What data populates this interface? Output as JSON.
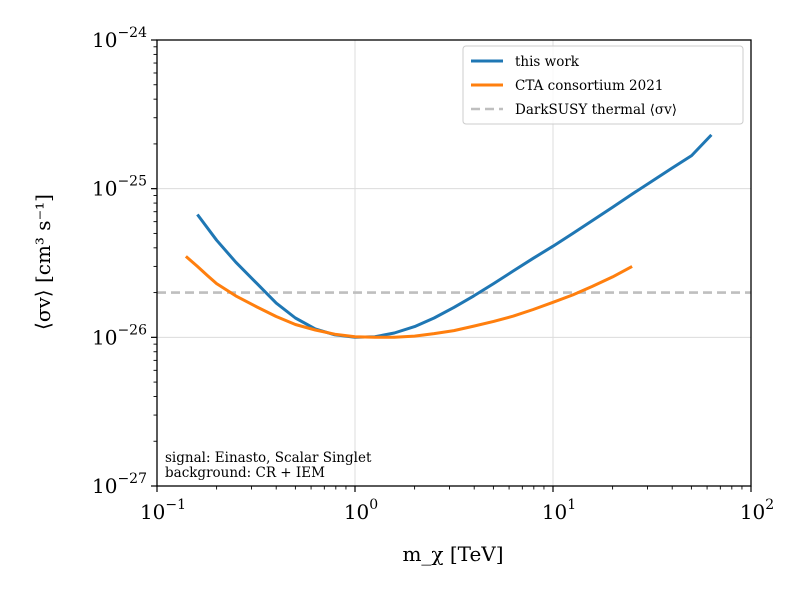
{
  "chart_data": {
    "type": "line",
    "title": "",
    "xlabel": "m_χ [TeV]",
    "ylabel": "⟨σv⟩ [cm³ s⁻¹]",
    "x_scale": "log",
    "y_scale": "log",
    "xlim": [
      0.1,
      100
    ],
    "ylim": [
      1e-27,
      1e-24
    ],
    "grid": true,
    "legend_position": "top-right",
    "x_ticks": [
      {
        "value": 0.1,
        "base": "10",
        "exp": "−1"
      },
      {
        "value": 1,
        "base": "10",
        "exp": "0"
      },
      {
        "value": 10,
        "base": "10",
        "exp": "1"
      },
      {
        "value": 100,
        "base": "10",
        "exp": "2"
      }
    ],
    "y_ticks": [
      {
        "value": 1e-27,
        "base": "10",
        "exp": "−27"
      },
      {
        "value": 1e-26,
        "base": "10",
        "exp": "−26"
      },
      {
        "value": 1e-25,
        "base": "10",
        "exp": "−25"
      },
      {
        "value": 1e-24,
        "base": "10",
        "exp": "−24"
      }
    ],
    "series": [
      {
        "name": "this work",
        "color": "#1f77b4",
        "style": "solid",
        "x": [
          0.16,
          0.2,
          0.25,
          0.32,
          0.4,
          0.5,
          0.63,
          0.79,
          1.0,
          1.26,
          1.58,
          2.0,
          2.51,
          3.16,
          3.98,
          5.01,
          6.31,
          7.94,
          10.0,
          12.6,
          15.8,
          20.0,
          25.1,
          31.6,
          39.8,
          50.1,
          63.1
        ],
        "y": [
          6.7e-26,
          4.5e-26,
          3.2e-26,
          2.3e-26,
          1.7e-26,
          1.35e-26,
          1.14e-26,
          1.04e-26,
          1e-26,
          1.01e-26,
          1.07e-26,
          1.18e-26,
          1.35e-26,
          1.59e-26,
          1.9e-26,
          2.3e-26,
          2.8e-26,
          3.4e-26,
          4.1e-26,
          5e-26,
          6.1e-26,
          7.5e-26,
          9.2e-26,
          1.12e-25,
          1.37e-25,
          1.67e-25,
          2.3e-25
        ]
      },
      {
        "name": "CTA consortium 2021",
        "color": "#ff7f0e",
        "style": "solid",
        "x": [
          0.14,
          0.16,
          0.18,
          0.2,
          0.25,
          0.32,
          0.4,
          0.5,
          0.63,
          0.79,
          1.0,
          1.26,
          1.58,
          2.0,
          2.51,
          3.16,
          3.98,
          5.01,
          6.31,
          7.94,
          10.0,
          12.6,
          15.8,
          20.0,
          25.1
        ],
        "y": [
          3.5e-26,
          3e-26,
          2.6e-26,
          2.3e-26,
          1.9e-26,
          1.6e-26,
          1.38e-26,
          1.22e-26,
          1.12e-26,
          1.05e-26,
          1.01e-26,
          1e-26,
          1e-26,
          1.02e-26,
          1.06e-26,
          1.11e-26,
          1.19e-26,
          1.28e-26,
          1.39e-26,
          1.54e-26,
          1.72e-26,
          1.93e-26,
          2.2e-26,
          2.55e-26,
          3e-26
        ]
      },
      {
        "name": "DarkSUSY thermal ⟨σv⟩",
        "color": "#bfbfbf",
        "style": "dashed",
        "x": [
          0.1,
          100
        ],
        "y": [
          2e-26,
          2e-26
        ]
      }
    ],
    "annotations": [
      "signal: Einasto, Scalar Singlet",
      "background: CR + IEM"
    ]
  }
}
